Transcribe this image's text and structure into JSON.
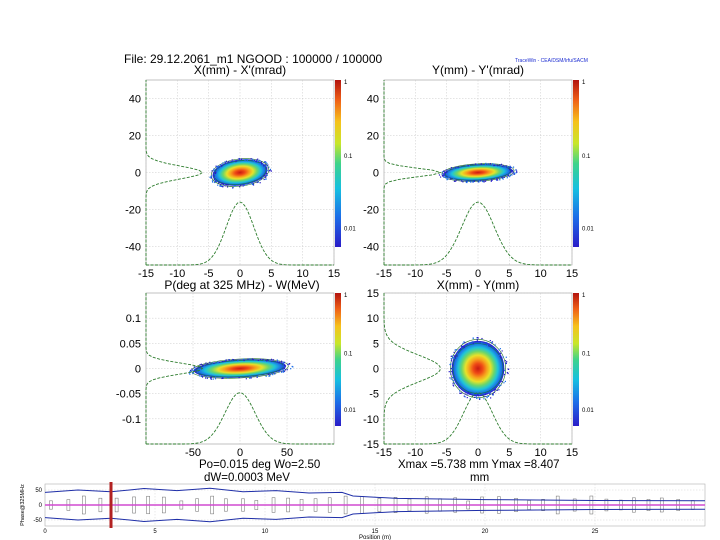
{
  "header": {
    "file_line": "File: 29.12.2061_m1    NGOOD : 100000 / 100000",
    "software_tag": "TraceWin - CEA/DSM/Irfu/SACM"
  },
  "colors": {
    "grid": "#c8c8c8",
    "contour_outer": "#1f6e1f",
    "profile": "#2e7d2e",
    "envelope": "#1f2fa8",
    "elements": "#6a6a6a",
    "marker": "#b22222",
    "beamline": "#d14ad1"
  },
  "chart_data": [
    {
      "type": "heatmap",
      "id": "xxp",
      "title": "X(mm) - X'(mrad)",
      "xlim": [
        -15,
        15
      ],
      "ylim": [
        -50,
        50
      ],
      "xticks": [
        "-15",
        "-10",
        "-5",
        "0",
        "5",
        "10",
        "15"
      ],
      "yticks": [
        "40",
        "20",
        "0",
        "-20",
        "-40"
      ],
      "colorbar": {
        "scale": "log",
        "labels": [
          "1",
          "0.1",
          "0.01"
        ]
      },
      "ellipse": {
        "cx": 0,
        "cy": 0,
        "rx": 4.4,
        "ry": 7,
        "tilt_deg": -7
      },
      "profile_x": {
        "center": 0,
        "sigma": 2.2
      },
      "profile_y": {
        "center": 0,
        "sigma": 3.5
      }
    },
    {
      "type": "heatmap",
      "id": "yyp",
      "title": "Y(mm) - Y'(mrad)",
      "xlim": [
        -15,
        15
      ],
      "ylim": [
        -50,
        50
      ],
      "xticks": [
        "-15",
        "-10",
        "-5",
        "0",
        "5",
        "10",
        "15"
      ],
      "yticks": [
        "40",
        "20",
        "0",
        "-20",
        "-40"
      ],
      "colorbar": {
        "scale": "log",
        "labels": [
          "1",
          "0.1",
          "0.01"
        ]
      },
      "ellipse": {
        "cx": 0,
        "cy": 0,
        "rx": 5.5,
        "ry": 4.5,
        "tilt_deg": -3
      },
      "profile_x": {
        "center": 0,
        "sigma": 2.6
      },
      "profile_y": {
        "center": 0,
        "sigma": 2.3
      }
    },
    {
      "type": "heatmap",
      "id": "phw",
      "title": "P(deg at 325 MHz) - W(MeV)",
      "xlim": [
        -100,
        100
      ],
      "ylim": [
        -0.15,
        0.15
      ],
      "xticks": [
        "-50",
        "0",
        "50"
      ],
      "yticks": [
        "0.1",
        "0.05",
        "0",
        "-0.05",
        "-0.1"
      ],
      "colorbar": {
        "scale": "log",
        "labels": [
          "1",
          "0.1",
          "0.01"
        ]
      },
      "ellipse": {
        "cx": 0,
        "cy": 0,
        "rx": 49,
        "ry": 0.018,
        "tilt_deg": -3
      },
      "profile_x": {
        "center": 0,
        "sigma": 16
      },
      "profile_y": {
        "center": 0,
        "sigma": 0.011
      }
    },
    {
      "type": "heatmap",
      "id": "xy",
      "title": "X(mm) - Y(mm)",
      "xlim": [
        -15,
        15
      ],
      "ylim": [
        -15,
        15
      ],
      "xticks": [
        "-15",
        "-10",
        "-5",
        "0",
        "5",
        "10",
        "15"
      ],
      "yticks": [
        "15",
        "10",
        "5",
        "0",
        "-5",
        "-10",
        "-15"
      ],
      "colorbar": {
        "scale": "log",
        "labels": [
          "1",
          "0.1",
          "0.01"
        ]
      },
      "ellipse": {
        "cx": 0,
        "cy": 0,
        "rx": 4.2,
        "ry": 5.5,
        "tilt_deg": 0
      },
      "profile_x": {
        "center": 0,
        "sigma": 2.3
      },
      "profile_y": {
        "center": 0,
        "sigma": 2.7
      }
    },
    {
      "type": "line",
      "id": "envelope",
      "ylabel": "Phase@325MHz",
      "xlabel": "Position (m)",
      "xlim": [
        0,
        30
      ],
      "ylim": [
        -70,
        70
      ],
      "xticks": [
        "0",
        "5",
        "10",
        "15",
        "20",
        "25"
      ],
      "yticks": [
        "50",
        "0",
        "-50"
      ],
      "marker_position": 3,
      "envelope_upper": [
        [
          0,
          42
        ],
        [
          1.5,
          50
        ],
        [
          3,
          44
        ],
        [
          4.5,
          55
        ],
        [
          6,
          48
        ],
        [
          7.5,
          56
        ],
        [
          9,
          44
        ],
        [
          10.5,
          48
        ],
        [
          12,
          40
        ],
        [
          13.5,
          42
        ],
        [
          14,
          30
        ],
        [
          16,
          22
        ],
        [
          20,
          18
        ],
        [
          25,
          15
        ],
        [
          30,
          14
        ]
      ],
      "envelope_lower": [
        [
          0,
          -42
        ],
        [
          1.5,
          -50
        ],
        [
          3,
          -44
        ],
        [
          4.5,
          -55
        ],
        [
          6,
          -48
        ],
        [
          7.5,
          -56
        ],
        [
          9,
          -44
        ],
        [
          10.5,
          -48
        ],
        [
          12,
          -40
        ],
        [
          13.5,
          -42
        ],
        [
          14,
          -30
        ],
        [
          16,
          -22
        ],
        [
          20,
          -18
        ],
        [
          25,
          -15
        ],
        [
          30,
          -14
        ]
      ]
    }
  ],
  "footer": {
    "longitudinal": {
      "line1": "Po=0.015 deg  Wo=2.50",
      "line2": "dW=0.0003 MeV"
    },
    "transverse": {
      "line1": "Xmax =5.738 mm  Ymax =8.407",
      "line2": "mm"
    }
  }
}
